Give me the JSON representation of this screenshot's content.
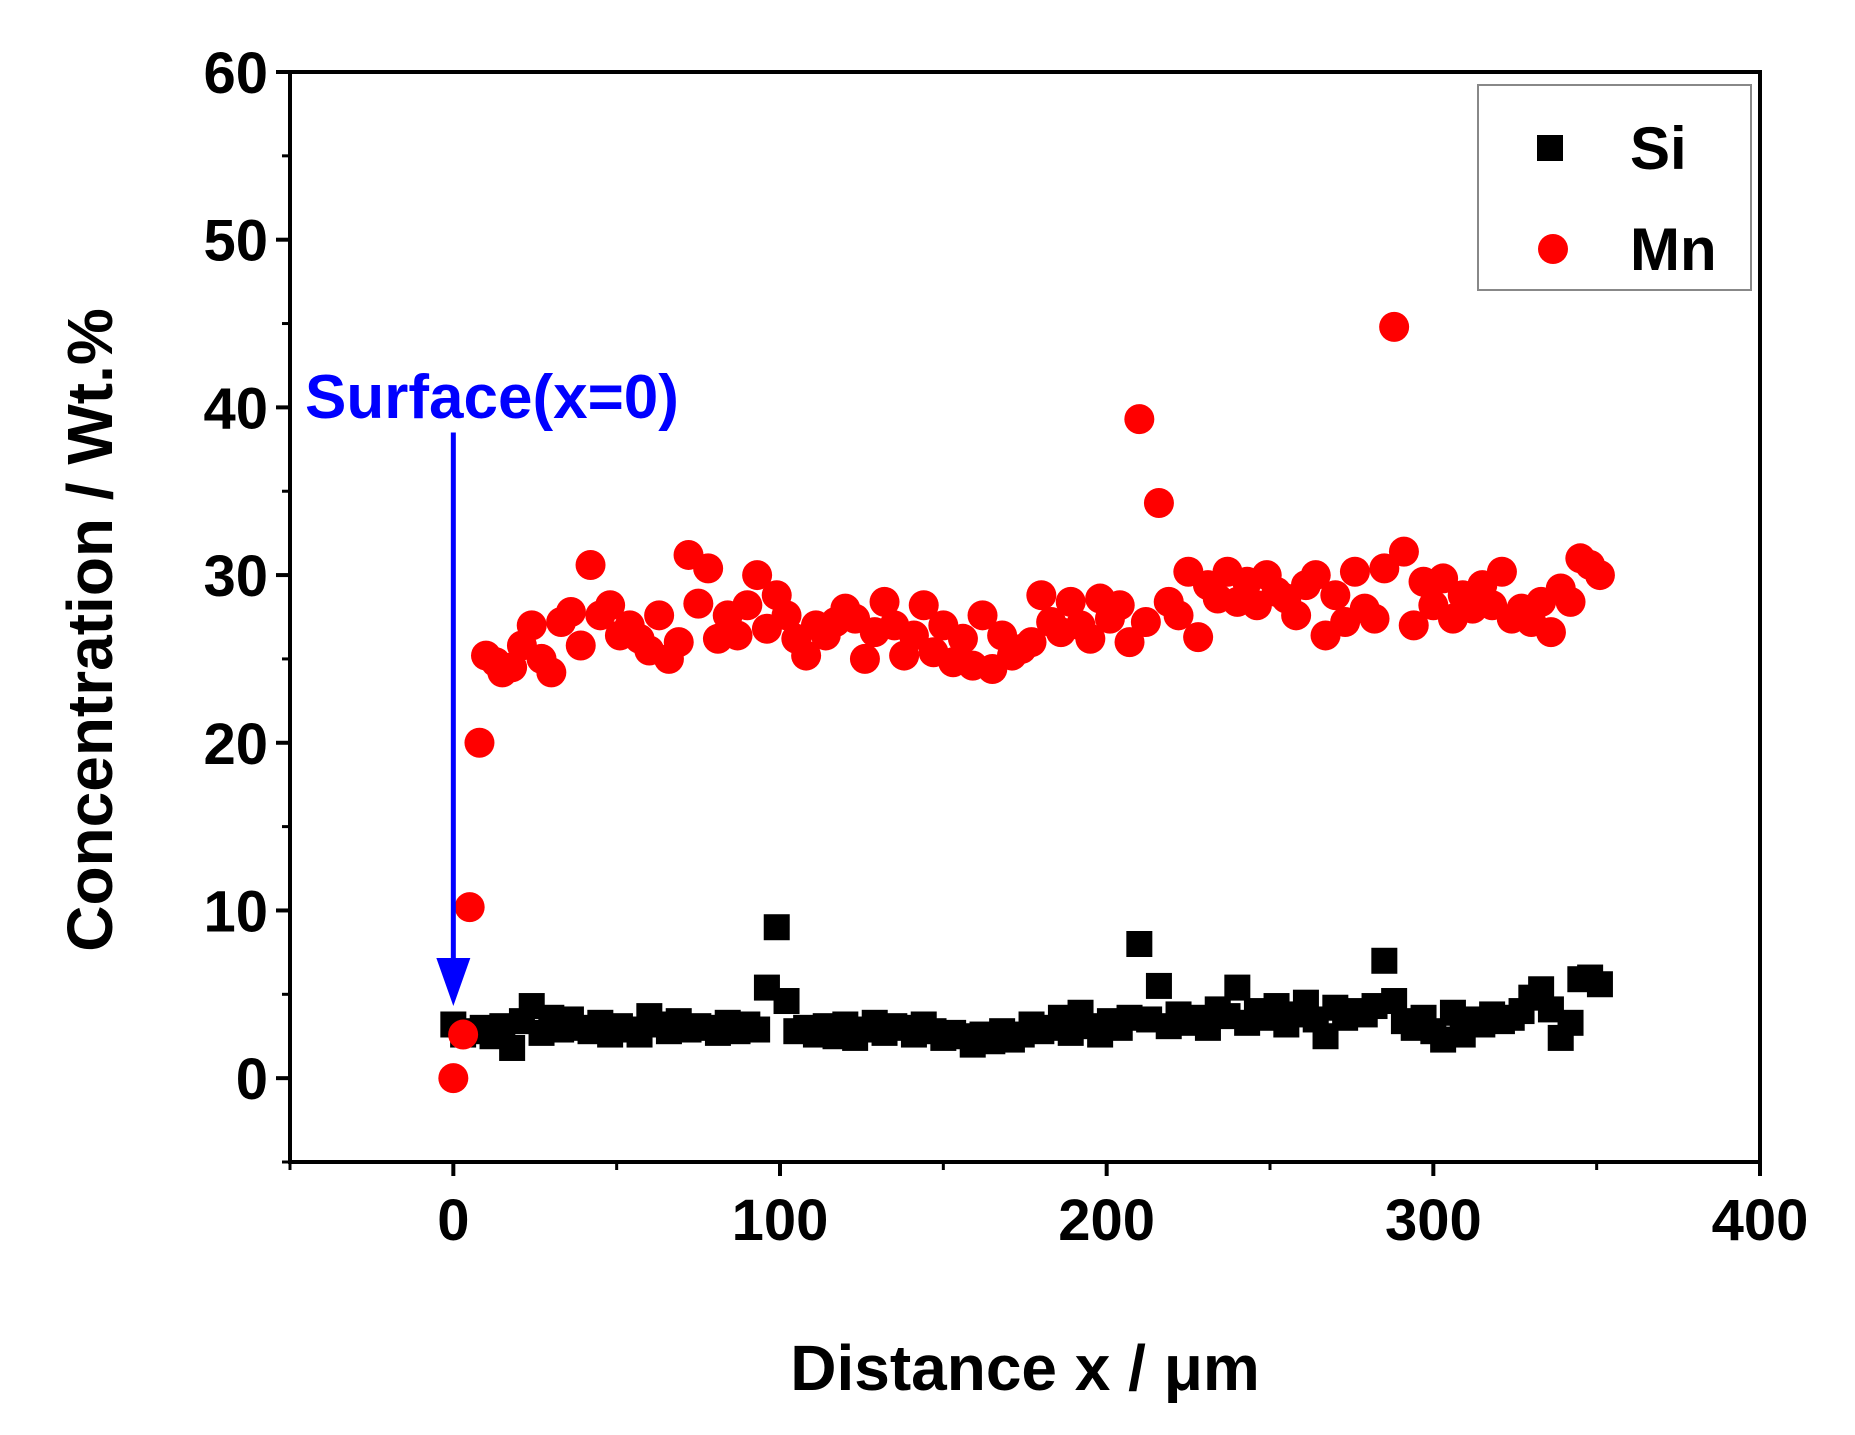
{
  "chart_data": {
    "type": "scatter",
    "title": "",
    "xlabel": "Distance x / μm",
    "ylabel": "Concentration  / Wt.%",
    "xlim": [
      -50,
      400
    ],
    "ylim": [
      -5,
      60
    ],
    "xticks": [
      0,
      100,
      200,
      300,
      400
    ],
    "yticks": [
      0,
      10,
      20,
      30,
      40,
      50,
      60
    ],
    "xtick_labels": [
      "0",
      "100",
      "200",
      "300",
      "400"
    ],
    "ytick_labels": [
      "0",
      "10",
      "20",
      "30",
      "40",
      "50",
      "60"
    ],
    "legend_position": "top-right",
    "colors": {
      "Si": "#000000",
      "Mn": "#ff0000",
      "annotation": "#0000ff"
    },
    "annotation": {
      "text": "Surface(x=0)",
      "x": 0,
      "y_from": 38.5,
      "y_to": 4.3
    },
    "series": [
      {
        "name": "Si",
        "marker": "square",
        "x": [
          0,
          3,
          6,
          9,
          12,
          15,
          18,
          21,
          24,
          27,
          30,
          33,
          36,
          39,
          42,
          45,
          48,
          51,
          54,
          57,
          60,
          63,
          66,
          69,
          72,
          75,
          78,
          81,
          84,
          87,
          90,
          93,
          96,
          99,
          102,
          105,
          108,
          111,
          114,
          117,
          120,
          123,
          126,
          129,
          132,
          135,
          138,
          141,
          144,
          147,
          150,
          153,
          156,
          159,
          162,
          165,
          168,
          171,
          174,
          177,
          180,
          183,
          186,
          189,
          192,
          195,
          198,
          201,
          204,
          207,
          210,
          213,
          216,
          219,
          222,
          225,
          228,
          231,
          234,
          237,
          240,
          243,
          246,
          249,
          252,
          255,
          258,
          261,
          264,
          267,
          270,
          273,
          276,
          279,
          282,
          285,
          288,
          291,
          294,
          297,
          300,
          303,
          306,
          309,
          312,
          315,
          318,
          321,
          324,
          327,
          330,
          333,
          336,
          339,
          342,
          345,
          348,
          351
        ],
        "y": [
          3.2,
          2.6,
          2.8,
          3.0,
          2.5,
          3.1,
          1.8,
          3.4,
          4.3,
          2.7,
          3.6,
          2.9,
          3.5,
          3.0,
          2.8,
          3.3,
          2.6,
          3.1,
          2.9,
          2.6,
          3.7,
          3.2,
          2.8,
          3.4,
          2.9,
          3.1,
          3.0,
          2.7,
          3.3,
          2.8,
          3.2,
          2.9,
          5.4,
          9.0,
          4.6,
          2.8,
          3.0,
          2.6,
          3.1,
          2.5,
          3.2,
          2.4,
          2.9,
          3.3,
          2.7,
          3.1,
          3.0,
          2.6,
          3.2,
          2.8,
          2.4,
          2.7,
          2.5,
          2.0,
          2.6,
          2.2,
          2.8,
          2.3,
          2.6,
          3.2,
          2.8,
          3.0,
          3.6,
          2.7,
          3.9,
          3.1,
          2.6,
          3.4,
          3.0,
          3.6,
          8.0,
          3.5,
          5.5,
          3.1,
          3.8,
          3.3,
          3.6,
          3.0,
          4.1,
          3.7,
          5.4,
          3.3,
          4.0,
          3.6,
          4.3,
          3.2,
          3.8,
          4.5,
          3.5,
          2.5,
          4.2,
          3.6,
          4.0,
          3.8,
          4.3,
          7.0,
          4.6,
          3.4,
          3.0,
          3.6,
          2.8,
          2.3,
          3.9,
          2.6,
          3.5,
          3.2,
          3.8,
          3.4,
          3.6,
          4.0,
          4.8,
          5.3,
          4.1,
          2.4,
          3.3,
          5.9,
          6.0,
          5.6
        ]
      },
      {
        "name": "Mn",
        "marker": "circle",
        "x": [
          0,
          3,
          5,
          8,
          10,
          13,
          15,
          18,
          21,
          24,
          27,
          30,
          33,
          36,
          39,
          42,
          45,
          48,
          51,
          54,
          57,
          60,
          63,
          66,
          69,
          72,
          75,
          78,
          81,
          84,
          87,
          90,
          93,
          96,
          99,
          102,
          105,
          108,
          111,
          114,
          117,
          120,
          123,
          126,
          129,
          132,
          135,
          138,
          141,
          144,
          147,
          150,
          153,
          156,
          159,
          162,
          165,
          168,
          171,
          174,
          177,
          180,
          183,
          186,
          189,
          192,
          195,
          198,
          201,
          204,
          207,
          210,
          212,
          216,
          219,
          222,
          225,
          228,
          231,
          234,
          237,
          240,
          243,
          246,
          249,
          252,
          255,
          258,
          261,
          264,
          267,
          270,
          273,
          276,
          279,
          282,
          285,
          288,
          291,
          294,
          297,
          300,
          303,
          306,
          309,
          312,
          315,
          318,
          321,
          324,
          327,
          330,
          333,
          336,
          339,
          342,
          345,
          348,
          351
        ],
        "y": [
          0.0,
          2.6,
          10.2,
          20.0,
          25.2,
          24.8,
          24.2,
          24.5,
          25.8,
          27.0,
          25.0,
          24.2,
          27.2,
          27.8,
          25.8,
          30.6,
          27.6,
          28.2,
          26.4,
          27.0,
          26.2,
          25.5,
          27.6,
          25.0,
          26.0,
          31.2,
          28.3,
          30.4,
          26.2,
          27.6,
          26.4,
          28.2,
          30.0,
          26.8,
          28.8,
          27.6,
          26.2,
          25.2,
          27.0,
          26.4,
          27.2,
          28.0,
          27.4,
          25.0,
          26.6,
          28.4,
          27.0,
          25.2,
          26.4,
          28.2,
          25.4,
          27.0,
          24.8,
          26.2,
          24.6,
          27.6,
          24.4,
          26.4,
          25.2,
          25.6,
          26.0,
          28.8,
          27.2,
          26.6,
          28.4,
          27.0,
          26.2,
          28.6,
          27.4,
          28.2,
          26.0,
          39.3,
          27.2,
          34.3,
          28.4,
          27.6,
          30.2,
          26.3,
          29.4,
          28.6,
          30.2,
          28.4,
          29.6,
          28.2,
          30.0,
          29.0,
          28.6,
          27.6,
          29.4,
          30.0,
          26.4,
          28.8,
          27.2,
          30.2,
          28.0,
          27.4,
          30.4,
          44.8,
          31.4,
          27.0,
          29.6,
          28.2,
          29.8,
          27.4,
          28.8,
          28.0,
          29.4,
          28.2,
          30.2,
          27.4,
          28.0,
          27.2,
          28.4,
          26.6,
          29.2,
          28.4,
          31.0,
          30.6,
          30.0
        ]
      }
    ]
  }
}
